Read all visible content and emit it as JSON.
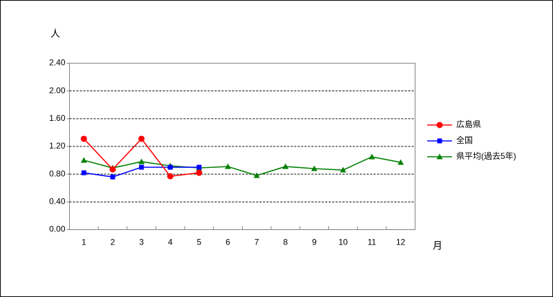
{
  "chart_data": {
    "type": "line",
    "y_label": "人",
    "x_label": "月",
    "categories": [
      "1",
      "2",
      "3",
      "4",
      "5",
      "6",
      "7",
      "8",
      "9",
      "10",
      "11",
      "12"
    ],
    "series": [
      {
        "name": "広島県",
        "color": "#ff0000",
        "marker": "circle",
        "values": [
          1.31,
          0.87,
          1.31,
          0.77,
          0.82,
          null,
          null,
          null,
          null,
          null,
          null,
          null
        ]
      },
      {
        "name": "全国",
        "color": "#0000ff",
        "marker": "square",
        "values": [
          0.82,
          0.76,
          0.9,
          0.9,
          0.9,
          null,
          null,
          null,
          null,
          null,
          null,
          null
        ]
      },
      {
        "name": "県平均(過去5年)",
        "color": "#008000",
        "marker": "triangle",
        "values": [
          1.0,
          0.89,
          0.98,
          0.92,
          0.89,
          0.91,
          0.78,
          0.91,
          0.88,
          0.86,
          1.05,
          0.97
        ]
      }
    ],
    "ylim": [
      0,
      2.4
    ],
    "yticks": [
      {
        "value": 0,
        "label": "0.00"
      },
      {
        "value": 0.4,
        "label": "0.40"
      },
      {
        "value": 0.8,
        "label": "0.80"
      },
      {
        "value": 1.2,
        "label": "1.20"
      },
      {
        "value": 1.6,
        "label": "1.60"
      },
      {
        "value": 2.0,
        "label": "2.00"
      },
      {
        "value": 2.4,
        "label": "2.40"
      }
    ],
    "grid": true,
    "legend": "right"
  }
}
